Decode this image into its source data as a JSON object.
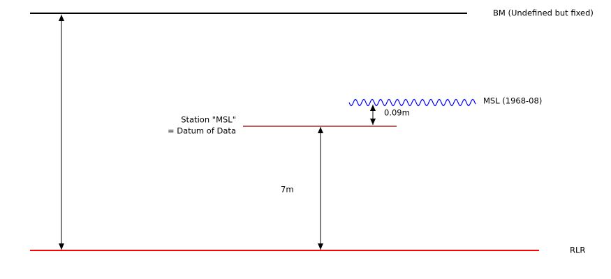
{
  "labels": {
    "bm": "BM (Undefined but fixed)",
    "msl": "MSL (1968-08)",
    "station_line1": "Station \"MSL\"",
    "station_line2": "= Datum of Data",
    "rlr": "RLR",
    "dist_7m": "7m",
    "dist_009m": "0.09m"
  },
  "colors": {
    "bm_line": "#000000",
    "station_line": "#8b0000",
    "rlr_line": "#ff0000",
    "msl_wave": "#0000ff",
    "arrows": "#000000"
  }
}
